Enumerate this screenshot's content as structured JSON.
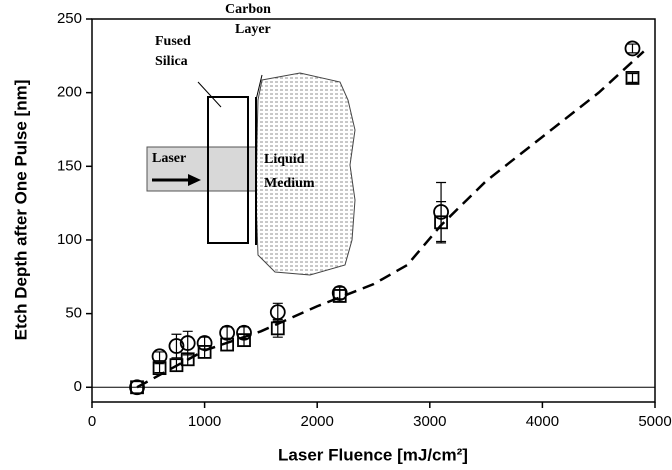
{
  "chart_data": {
    "type": "scatter",
    "xlabel": "Laser Fluence [mJ/cm²]",
    "ylabel": "Etch Depth after One Pulse [nm]",
    "x": [
      400,
      600,
      750,
      850,
      1000,
      1200,
      1350,
      1650,
      2200,
      3100,
      4800
    ],
    "series": [
      {
        "marker": "circle",
        "color": "#000000",
        "values": [
          0,
          21,
          28,
          30,
          30,
          37,
          37,
          51,
          64,
          119,
          230
        ],
        "errors": [
          0,
          3,
          8,
          8,
          4,
          4,
          4,
          6,
          4,
          20,
          3
        ]
      },
      {
        "marker": "square",
        "color": "#000000",
        "values": [
          0,
          13,
          15,
          19,
          24,
          29,
          32,
          40,
          62,
          112,
          210
        ],
        "errors": [
          0,
          3,
          4,
          4,
          4,
          4,
          4,
          6,
          4,
          14,
          3
        ]
      }
    ],
    "fit": {
      "style": "dashed",
      "color": "#000000",
      "x": [
        400,
        1000,
        1500,
        2000,
        2500,
        2800,
        3100,
        3500,
        4000,
        4500,
        4900
      ],
      "values": [
        0,
        25,
        38,
        55,
        70,
        83,
        110,
        140,
        170,
        200,
        228
      ]
    },
    "zero_line": true,
    "xlim": [
      0,
      5000
    ],
    "xticks": [
      0,
      1000,
      2000,
      3000,
      4000,
      5000
    ],
    "ylim": [
      -10,
      250
    ],
    "yticks": [
      0,
      50,
      100,
      150,
      200,
      250
    ],
    "inset": {
      "fused_silica": [
        "Fused",
        "Silica"
      ],
      "carbon_layer": [
        "Carbon",
        "Layer"
      ],
      "laser": "Laser",
      "liquid_medium": [
        "Liquid",
        "Medium"
      ]
    }
  }
}
